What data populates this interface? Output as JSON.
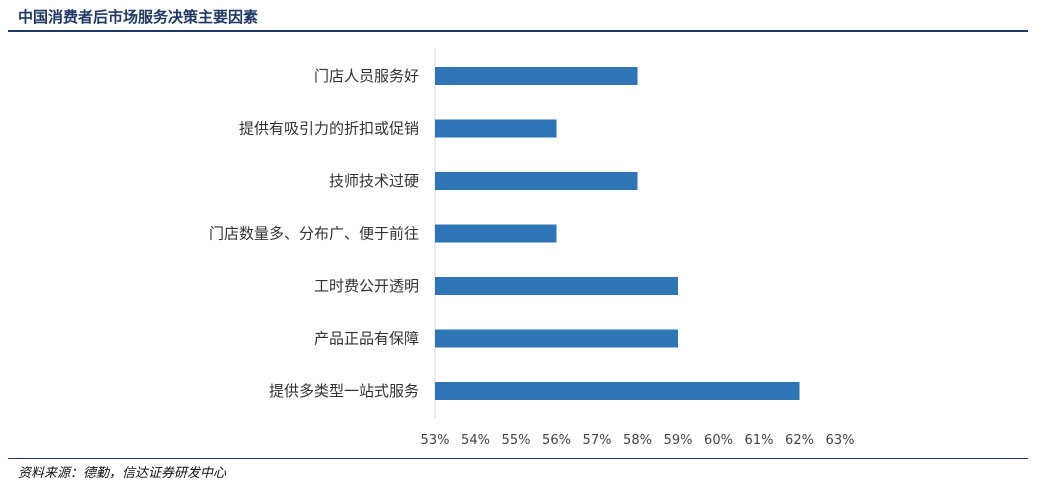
{
  "header": {
    "title": "中国消费者后市场服务决策主要因素"
  },
  "footer": {
    "source": "资料来源：德勤，信达证券研发中心"
  },
  "colors": {
    "bar": "#2e75b6",
    "rule": "#1f3864",
    "axis": "#d9d9d9"
  },
  "chart_data": {
    "type": "bar",
    "orientation": "horizontal",
    "categories": [
      "门店人员服务好",
      "提供有吸引力的折扣或促销",
      "技师技术过硬",
      "门店数量多、分布广、便于前往",
      "工时费公开透明",
      "产品正品有保障",
      "提供多类型一站式服务"
    ],
    "values": [
      58,
      56,
      58,
      56,
      59,
      59,
      62
    ],
    "unit": "%",
    "xlim": [
      53,
      63
    ],
    "xticks": [
      "53%",
      "54%",
      "55%",
      "56%",
      "57%",
      "58%",
      "59%",
      "60%",
      "61%",
      "62%",
      "63%"
    ],
    "grid": false,
    "legend": "none"
  }
}
